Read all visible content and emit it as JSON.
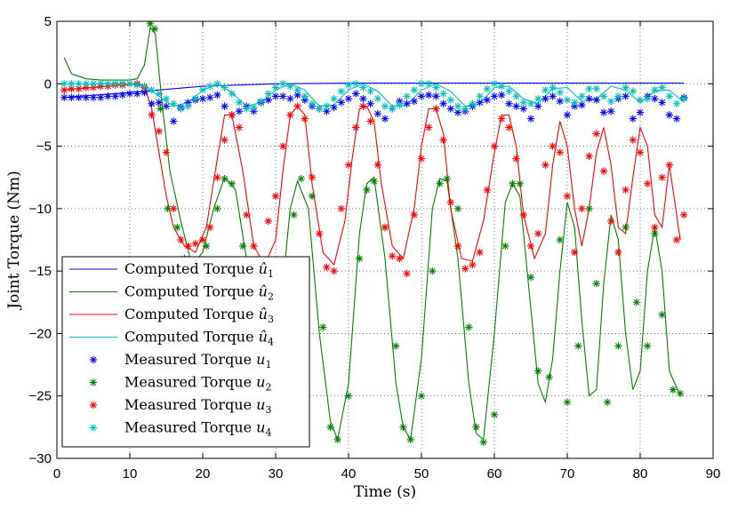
{
  "chart_data": {
    "type": "line",
    "xlabel": "Time (s)",
    "ylabel": "Joint Torque (Nm)",
    "xlim": [
      0,
      90
    ],
    "ylim": [
      -30,
      5
    ],
    "xticks": [
      0,
      10,
      20,
      30,
      40,
      50,
      60,
      70,
      80,
      90
    ],
    "yticks": [
      5,
      0,
      -5,
      -10,
      -15,
      -20,
      -25,
      -30
    ],
    "grid": true,
    "legend_position": "bottom-left",
    "series": [
      {
        "name": "Computed Torque û1",
        "legend_prefix": "Computed Torque ",
        "legend_sym": "û",
        "legend_sub": "1",
        "kind": "line",
        "color": "#0000ff",
        "x": [
          1,
          10,
          20,
          30,
          40,
          50,
          60,
          70,
          80,
          86
        ],
        "y": [
          -1.1,
          -0.7,
          -0.2,
          0.0,
          0.05,
          0.05,
          0.05,
          0.05,
          0.05,
          0.05
        ]
      },
      {
        "name": "Computed Torque û2",
        "legend_prefix": "Computed Torque ",
        "legend_sym": "û",
        "legend_sub": "2",
        "kind": "line",
        "color": "#008000",
        "x": [
          1,
          2,
          4,
          6,
          8,
          10,
          11,
          12,
          12.8,
          13.5,
          14.5,
          15.5,
          17,
          18.5,
          20,
          21.5,
          23,
          24.5,
          26,
          27.5,
          29,
          30.5,
          32,
          33,
          34.5,
          36,
          37.5,
          38.5,
          40,
          41.5,
          42.5,
          43.5,
          45,
          46.5,
          47.5,
          48.5,
          50,
          51.5,
          52.5,
          53.5,
          55,
          56.5,
          57.5,
          58.5,
          60,
          61.5,
          62.5,
          63.5,
          65,
          66,
          67,
          68,
          69,
          70,
          71,
          72,
          73,
          74,
          75,
          76,
          77,
          78,
          79,
          80,
          81,
          82,
          83,
          84,
          85.5
        ],
        "y": [
          2.1,
          0.8,
          0.4,
          0.3,
          0.3,
          0.3,
          0.4,
          1.5,
          4.5,
          4.0,
          -2.0,
          -7.0,
          -11.0,
          -14.5,
          -13.5,
          -10.0,
          -7.5,
          -8.5,
          -14.0,
          -21.0,
          -24.0,
          -19.0,
          -10.0,
          -7.8,
          -10.0,
          -20.0,
          -27.0,
          -28.5,
          -24.0,
          -12.0,
          -8.0,
          -7.5,
          -14.0,
          -24.0,
          -27.5,
          -28.5,
          -22.0,
          -10.0,
          -7.6,
          -7.8,
          -14.0,
          -24.0,
          -28.0,
          -28.5,
          -20.0,
          -9.5,
          -8.0,
          -9.0,
          -18.0,
          -24.0,
          -25.5,
          -22.0,
          -15.0,
          -9.5,
          -11.5,
          -19.0,
          -25.0,
          -24.5,
          -16.0,
          -10.5,
          -12.5,
          -20.0,
          -24.5,
          -23.0,
          -15.0,
          -11.5,
          -15.0,
          -23.0,
          -25.0
        ]
      },
      {
        "name": "Computed Torque û3",
        "legend_prefix": "Computed Torque ",
        "legend_sym": "û",
        "legend_sub": "3",
        "kind": "line",
        "color": "#ff0000",
        "x": [
          1,
          5,
          9,
          11,
          12,
          13,
          14,
          15,
          16,
          17.5,
          19,
          20.5,
          22,
          23,
          24,
          25.5,
          27,
          28.5,
          30,
          31,
          32,
          33,
          34,
          35,
          36.5,
          38,
          39.5,
          40.5,
          41.5,
          42.5,
          43.5,
          44.5,
          46,
          47.5,
          49,
          50,
          51,
          52,
          53,
          54,
          55.5,
          57,
          58.5,
          60,
          61,
          62,
          63,
          64,
          65.5,
          67,
          68,
          69,
          70,
          71,
          72,
          73,
          74,
          75,
          76,
          77,
          78,
          79,
          80,
          81,
          82,
          83,
          84,
          85.5
        ],
        "y": [
          -0.5,
          -0.3,
          -0.1,
          0.0,
          -0.2,
          -2.0,
          -5.5,
          -9.0,
          -11.5,
          -13.0,
          -13.5,
          -11.5,
          -6.0,
          -2.5,
          -2.5,
          -7.0,
          -13.0,
          -14.5,
          -12.5,
          -7.0,
          -2.5,
          -1.8,
          -2.5,
          -8.0,
          -13.5,
          -14.5,
          -11.0,
          -6.0,
          -2.0,
          -1.8,
          -3.0,
          -8.0,
          -13.0,
          -14.0,
          -10.0,
          -5.0,
          -2.0,
          -2.0,
          -4.0,
          -10.0,
          -14.0,
          -14.2,
          -11.0,
          -5.5,
          -2.5,
          -2.5,
          -5.0,
          -10.5,
          -14.0,
          -12.0,
          -6.5,
          -3.0,
          -5.0,
          -10.0,
          -13.0,
          -10.0,
          -5.5,
          -3.5,
          -6.5,
          -11.5,
          -12.0,
          -7.5,
          -3.5,
          -5.0,
          -10.5,
          -11.5,
          -6.5,
          -12.5
        ]
      },
      {
        "name": "Computed Torque û4",
        "legend_prefix": "Computed Torque ",
        "legend_sym": "û",
        "legend_sub": "4",
        "kind": "line",
        "color": "#00bfbf",
        "x": [
          1,
          10,
          12,
          14,
          16,
          18,
          20,
          22,
          24,
          26,
          28,
          30,
          32,
          34,
          36,
          38,
          40,
          42,
          44,
          46,
          48,
          50,
          52,
          54,
          56,
          58,
          60,
          62,
          64,
          66,
          68,
          70,
          72,
          74,
          76,
          78,
          80,
          82,
          84,
          86
        ],
        "y": [
          0.0,
          0.0,
          -0.2,
          -1.0,
          -1.8,
          -1.5,
          -0.5,
          0.0,
          -0.7,
          -1.8,
          -1.5,
          -0.5,
          0.0,
          -0.5,
          -1.8,
          -1.7,
          -0.5,
          0.0,
          -0.6,
          -1.8,
          -1.7,
          -0.5,
          0.0,
          -0.6,
          -1.8,
          -1.6,
          -0.3,
          -0.2,
          -1.2,
          -1.6,
          -0.4,
          -0.3,
          -1.4,
          -1.2,
          -0.2,
          -0.5,
          -1.5,
          -0.6,
          -0.5,
          -1.5
        ]
      },
      {
        "name": "Measured Torque u1",
        "legend_prefix": "Measured Torque ",
        "legend_sym": "u",
        "legend_sub": "1",
        "kind": "marker",
        "color": "#0000ff",
        "x": [
          1,
          2,
          3,
          4,
          5,
          6,
          7,
          8,
          9,
          10,
          11,
          12,
          13,
          14,
          15,
          16,
          17,
          18,
          19,
          20,
          21,
          22,
          23,
          24,
          25,
          26,
          27,
          28,
          29,
          30,
          31,
          32,
          33,
          34,
          35,
          36,
          37,
          38,
          39,
          40,
          41,
          42,
          43,
          44,
          45,
          46,
          47,
          48,
          49,
          50,
          51,
          52,
          53,
          54,
          55,
          56,
          57,
          58,
          59,
          60,
          61,
          62,
          63,
          64,
          65,
          66,
          67,
          68,
          69,
          70,
          71,
          72,
          73,
          74,
          75,
          76,
          77,
          78,
          79,
          80,
          81,
          82,
          83,
          84,
          85,
          86
        ],
        "y": [
          -1.1,
          -1.1,
          -1.1,
          -1.1,
          -1.1,
          -1.1,
          -1.0,
          -1.0,
          -0.9,
          -0.8,
          -0.8,
          -0.7,
          -1.6,
          -1.5,
          -1.8,
          -3.0,
          -1.9,
          -1.5,
          -1.3,
          -1.2,
          -1.1,
          -0.9,
          -1.8,
          -2.5,
          -2.2,
          -1.8,
          -2.2,
          -1.5,
          -1.3,
          -1.0,
          -1.0,
          -1.2,
          -0.9,
          -1.3,
          -1.8,
          -2.0,
          -2.2,
          -1.9,
          -1.5,
          -1.2,
          -0.8,
          -1.2,
          -1.6,
          -2.4,
          -2.8,
          -2.0,
          -1.4,
          -1.6,
          -1.4,
          -1.0,
          -0.9,
          -1.0,
          -1.6,
          -2.0,
          -2.3,
          -2.2,
          -1.8,
          -1.5,
          -1.3,
          -1.0,
          -0.9,
          -1.6,
          -1.8,
          -2.0,
          -2.8,
          -1.8,
          -1.2,
          -1.0,
          -1.4,
          -2.5,
          -1.8,
          -1.7,
          -1.2,
          -1.3,
          -2.3,
          -2.2,
          -1.2,
          -1.0,
          -2.8,
          -2.3,
          -1.0,
          -1.2,
          -1.5,
          -2.5,
          -2.8,
          -1.1
        ]
      },
      {
        "name": "Measured Torque u2",
        "legend_prefix": "Measured Torque ",
        "legend_sym": "u",
        "legend_sub": "2",
        "kind": "marker",
        "color": "#008000",
        "x": [
          12.8,
          13.4,
          14.2,
          15.2,
          16.5,
          17.5,
          19,
          20.5,
          22,
          23,
          24,
          25.5,
          27,
          28.5,
          29.5,
          31,
          32.5,
          33.5,
          35,
          36.5,
          37.5,
          38.5,
          40,
          41.5,
          42.5,
          43.5,
          45,
          46.5,
          47.5,
          48.5,
          50,
          51.5,
          52.5,
          53.5,
          55,
          56.5,
          57.5,
          58.5,
          60,
          61.5,
          62.5,
          63.5,
          65,
          66,
          67.5,
          69,
          70,
          71.5,
          73,
          74,
          75.5,
          77,
          78,
          79.5,
          81,
          82,
          83,
          84.5,
          85.5
        ],
        "y": [
          4.8,
          4.4,
          -2.0,
          -10.0,
          -11.5,
          -14.0,
          -19.0,
          -13.0,
          -10.0,
          -7.6,
          -8.0,
          -13.0,
          -20.5,
          -24.0,
          -24.5,
          -19.0,
          -10.5,
          -7.6,
          -9.0,
          -19.5,
          -27.5,
          -28.5,
          -25.0,
          -14.0,
          -8.5,
          -7.8,
          -11.5,
          -21.0,
          -27.5,
          -28.5,
          -25.0,
          -15.0,
          -8.0,
          -7.6,
          -10.0,
          -19.5,
          -27.5,
          -28.7,
          -26.5,
          -13.0,
          -8.0,
          -8.0,
          -15.5,
          -23.0,
          -23.5,
          -12.5,
          -25.5,
          -21.0,
          -10.0,
          -16.0,
          -25.5,
          -21.0,
          -11.5,
          -17.5,
          -21.0,
          -12.0,
          -18.5,
          -24.5,
          -24.8
        ]
      },
      {
        "name": "Measured Torque u3",
        "legend_prefix": "Measured Torque ",
        "legend_sym": "u",
        "legend_sub": "3",
        "kind": "marker",
        "color": "#ff0000",
        "x": [
          1,
          2,
          3,
          4,
          5,
          6,
          7,
          8,
          9,
          10,
          11,
          12,
          13,
          14,
          15,
          16,
          17,
          18,
          19,
          20,
          21,
          22,
          23,
          24,
          25,
          26,
          27,
          28,
          29,
          30,
          31,
          32,
          33,
          34,
          35,
          36,
          37,
          38,
          39,
          40,
          41,
          42,
          43,
          44,
          45,
          46,
          47,
          48,
          49,
          50,
          51,
          52,
          53,
          54,
          55,
          56,
          57,
          58,
          59,
          60,
          61,
          62,
          63,
          64,
          65,
          66,
          67,
          68,
          69,
          70,
          71,
          72,
          73,
          74,
          75,
          76,
          77,
          78,
          79,
          80,
          81,
          82,
          83,
          84,
          85,
          86
        ],
        "y": [
          -0.5,
          -0.4,
          -0.4,
          -0.3,
          -0.3,
          -0.2,
          -0.2,
          -0.1,
          -0.1,
          0.0,
          0.0,
          -0.3,
          -2.5,
          -3.8,
          -5.5,
          -10.0,
          -12.5,
          -13.0,
          -12.8,
          -12.5,
          -11.5,
          -7.5,
          -4.5,
          -2.5,
          -3.5,
          -10.5,
          -13.0,
          -14.5,
          -11.0,
          -9.0,
          -5.0,
          -2.5,
          -1.8,
          -2.8,
          -7.5,
          -12.0,
          -14.7,
          -15.0,
          -10.0,
          -6.5,
          -3.5,
          -1.8,
          -3.0,
          -6.5,
          -11.5,
          -13.8,
          -14.0,
          -15.2,
          -10.5,
          -6.0,
          -3.5,
          -2.0,
          -4.5,
          -9.5,
          -13.0,
          -14.8,
          -14.5,
          -13.5,
          -8.5,
          -5.0,
          -2.8,
          -3.5,
          -6.0,
          -10.5,
          -13.0,
          -12.0,
          -6.5,
          -5.0,
          -5.5,
          -9.0,
          -13.5,
          -10.0,
          -5.8,
          -4.0,
          -7.0,
          -11.0,
          -13.5,
          -8.5,
          -4.5,
          -5.5,
          -8.0,
          -11.5,
          -7.5,
          -6.5,
          -12.5,
          -10.5
        ]
      },
      {
        "name": "Measured Torque u4",
        "legend_prefix": "Measured Torque ",
        "legend_sym": "u",
        "legend_sub": "4",
        "kind": "marker",
        "color": "#00bfbf",
        "x": [
          1,
          2,
          3,
          4,
          5,
          6,
          7,
          8,
          9,
          10,
          11,
          12,
          13,
          14,
          15,
          16,
          17,
          18,
          19,
          20,
          21,
          22,
          23,
          24,
          25,
          26,
          27,
          28,
          29,
          30,
          31,
          32,
          33,
          34,
          35,
          36,
          37,
          38,
          39,
          40,
          41,
          42,
          43,
          44,
          45,
          46,
          47,
          48,
          49,
          50,
          51,
          52,
          53,
          54,
          55,
          56,
          57,
          58,
          59,
          60,
          61,
          62,
          63,
          64,
          65,
          66,
          67,
          68,
          69,
          70,
          71,
          72,
          73,
          74,
          75,
          76,
          77,
          78,
          79,
          80,
          81,
          82,
          83,
          84,
          85,
          86
        ],
        "y": [
          0.0,
          0.0,
          0.0,
          0.0,
          0.0,
          0.0,
          0.0,
          0.0,
          0.0,
          0.0,
          -0.1,
          -0.2,
          -0.5,
          -0.8,
          -1.2,
          -1.6,
          -2.0,
          -1.8,
          -1.2,
          -0.5,
          -0.2,
          0.0,
          -0.3,
          -0.8,
          -1.5,
          -2.0,
          -1.9,
          -1.4,
          -0.8,
          -0.3,
          0.0,
          -0.2,
          -0.5,
          -1.0,
          -1.6,
          -2.0,
          -1.8,
          -1.2,
          -0.6,
          -0.1,
          0.0,
          -0.3,
          -0.6,
          -1.2,
          -1.8,
          -2.0,
          -1.7,
          -1.0,
          -0.5,
          0.0,
          0.0,
          -0.3,
          -0.8,
          -1.3,
          -1.8,
          -2.0,
          -1.6,
          -1.0,
          -0.4,
          0.0,
          -0.2,
          -0.6,
          -1.0,
          -1.5,
          -1.6,
          -1.2,
          -0.5,
          -0.3,
          -0.7,
          -1.3,
          -1.5,
          -1.0,
          -0.4,
          -0.4,
          -1.0,
          -1.4,
          -1.0,
          -0.3,
          -0.6,
          -1.3,
          -1.2,
          -0.5,
          -0.3,
          -1.0,
          -1.6,
          -1.2
        ]
      }
    ]
  }
}
